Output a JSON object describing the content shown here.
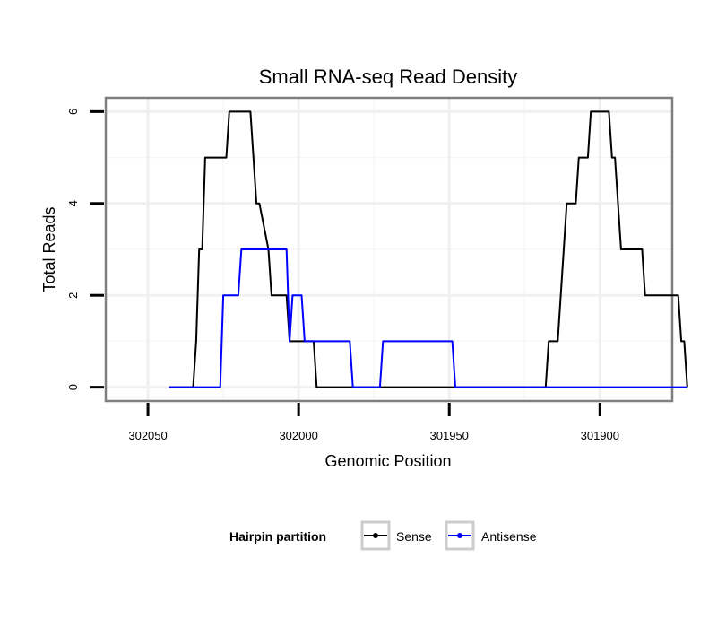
{
  "chart_data": {
    "type": "line",
    "title": "Small RNA-seq Read Density",
    "xlabel": "Genomic Position",
    "ylabel": "Total Reads",
    "x_reversed": true,
    "xlim": [
      302064,
      301876
    ],
    "ylim": [
      -0.3,
      6.3
    ],
    "x_ticks": [
      302050,
      302000,
      301950,
      301900
    ],
    "x_tick_labels": [
      "302050",
      "302000",
      "301950",
      "301900"
    ],
    "y_ticks": [
      0,
      2,
      4,
      6
    ],
    "y_tick_labels": [
      "0",
      "2",
      "4",
      "6"
    ],
    "grid": true,
    "legend": {
      "title": "Hairpin partition",
      "position": "bottom",
      "entries": [
        "Sense",
        "Antisense"
      ]
    },
    "series": [
      {
        "name": "Sense",
        "color": "#000000",
        "points": [
          [
            302043,
            0
          ],
          [
            302035,
            0
          ],
          [
            302034,
            1
          ],
          [
            302033,
            3
          ],
          [
            302032,
            3
          ],
          [
            302031,
            5
          ],
          [
            302024,
            5
          ],
          [
            302023,
            6
          ],
          [
            302016,
            6
          ],
          [
            302014,
            4
          ],
          [
            302013,
            4
          ],
          [
            302010,
            3
          ],
          [
            302009,
            2
          ],
          [
            302004,
            2
          ],
          [
            302003,
            1
          ],
          [
            301995,
            1
          ],
          [
            301994,
            0
          ],
          [
            301918,
            0
          ],
          [
            301917,
            1
          ],
          [
            301914,
            1
          ],
          [
            301911,
            4
          ],
          [
            301908,
            4
          ],
          [
            301907,
            5
          ],
          [
            301904,
            5
          ],
          [
            301903,
            6
          ],
          [
            301897,
            6
          ],
          [
            301896,
            5
          ],
          [
            301895,
            5
          ],
          [
            301893,
            3
          ],
          [
            301886,
            3
          ],
          [
            301885,
            2
          ],
          [
            301874,
            2
          ],
          [
            301873,
            1
          ],
          [
            301872,
            1
          ],
          [
            301871,
            0
          ]
        ]
      },
      {
        "name": "Antisense",
        "color": "#0000ff",
        "points": [
          [
            302043,
            0
          ],
          [
            302026,
            0
          ],
          [
            302025,
            2
          ],
          [
            302020,
            2
          ],
          [
            302019,
            3
          ],
          [
            302004,
            3
          ],
          [
            302003,
            1
          ],
          [
            302002,
            2
          ],
          [
            301999,
            2
          ],
          [
            301998,
            1
          ],
          [
            301983,
            1
          ],
          [
            301982,
            0
          ],
          [
            301973,
            0
          ],
          [
            301972,
            1
          ],
          [
            301949,
            1
          ],
          [
            301948,
            0
          ],
          [
            301871,
            0
          ]
        ]
      }
    ]
  }
}
